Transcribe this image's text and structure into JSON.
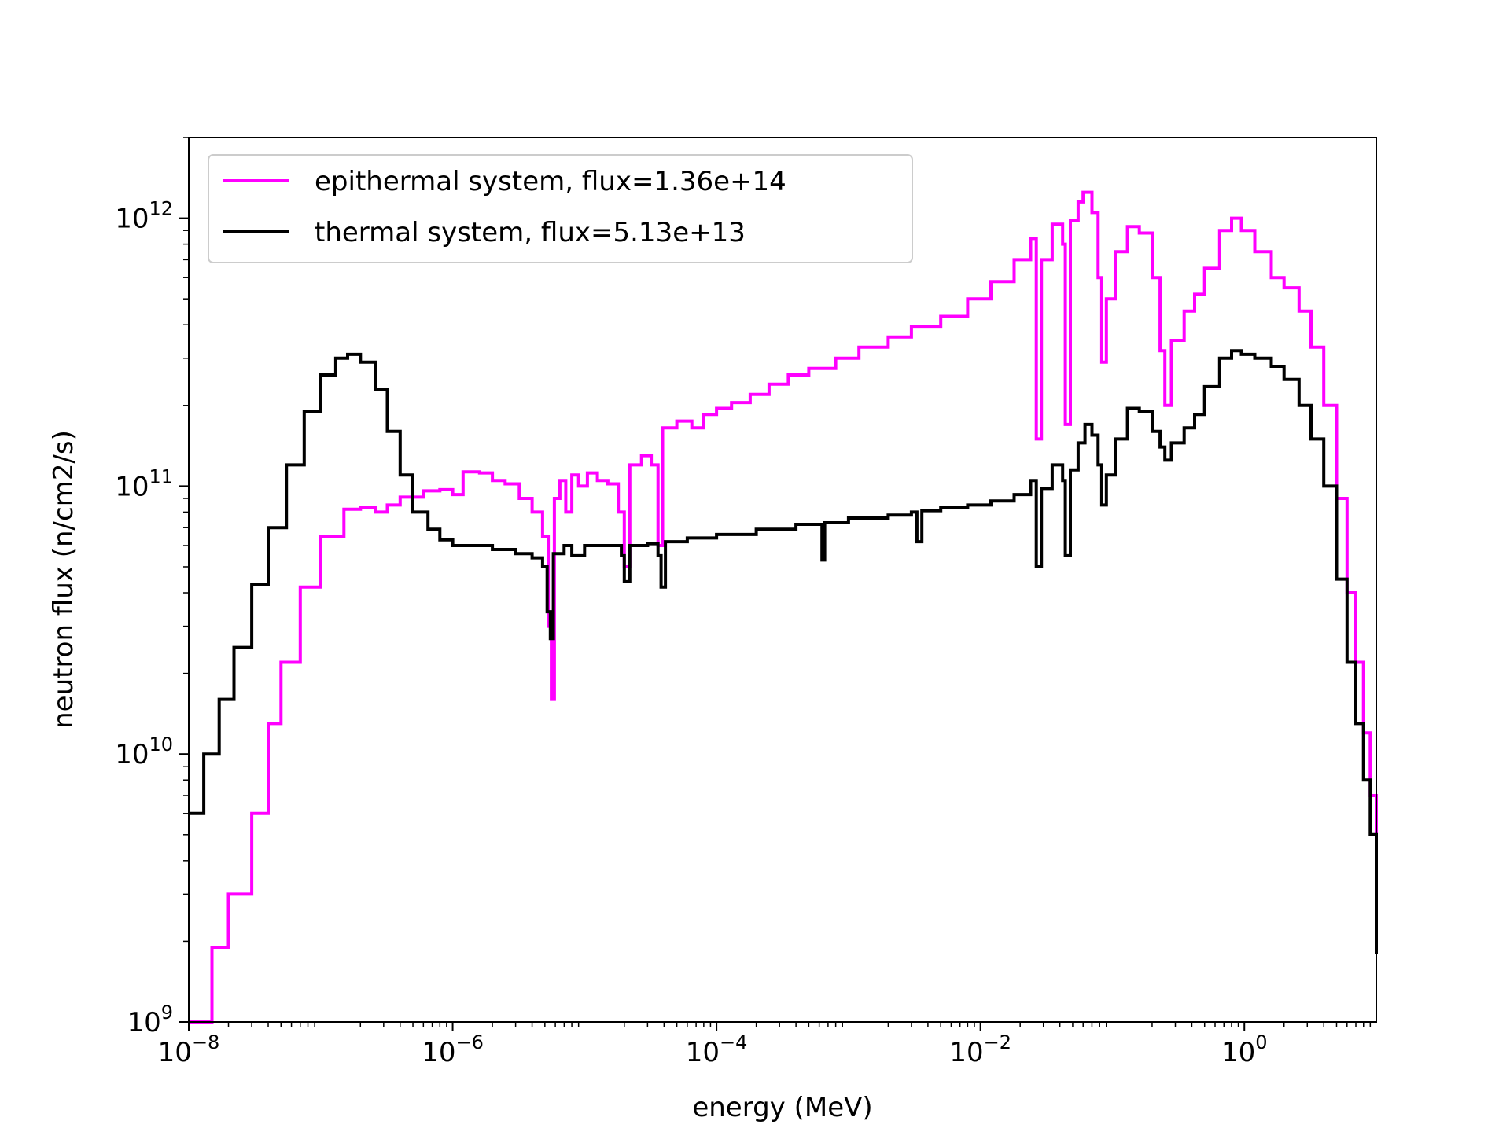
{
  "chart_data": {
    "type": "line",
    "title": "",
    "xlabel": "energy (MeV)",
    "ylabel": "neutron flux (n/cm2/s)",
    "xscale": "log",
    "yscale": "log",
    "xlim": [
      1e-08,
      10
    ],
    "ylim": [
      1000000000.0,
      2000000000000.0
    ],
    "grid": false,
    "legend_position": "upper-left",
    "x_ticks": [
      {
        "base": "10",
        "exp": "−8",
        "value": 1e-08
      },
      {
        "base": "10",
        "exp": "−6",
        "value": 1e-06
      },
      {
        "base": "10",
        "exp": "−4",
        "value": 0.0001
      },
      {
        "base": "10",
        "exp": "−2",
        "value": 0.01
      },
      {
        "base": "10",
        "exp": "0",
        "value": 1
      }
    ],
    "y_ticks": [
      {
        "base": "10",
        "exp": "9",
        "value": 1000000000.0
      },
      {
        "base": "10",
        "exp": "10",
        "value": 10000000000.0
      },
      {
        "base": "10",
        "exp": "11",
        "value": 100000000000.0
      },
      {
        "base": "10",
        "exp": "12",
        "value": 1000000000000.0
      }
    ],
    "series": [
      {
        "name": "epithermal system, flux=1.36e+14",
        "color": "#ff00ff",
        "points": [
          [
            1e-08,
            1000000000.0
          ],
          [
            1.5e-08,
            1900000000.0
          ],
          [
            2e-08,
            3000000000.0
          ],
          [
            3e-08,
            6000000000.0
          ],
          [
            4e-08,
            13000000000.0
          ],
          [
            5e-08,
            22000000000.0
          ],
          [
            7e-08,
            42000000000.0
          ],
          [
            1e-07,
            65000000000.0
          ],
          [
            1.5e-07,
            82000000000.0
          ],
          [
            2e-07,
            83000000000.0
          ],
          [
            2.6e-07,
            80000000000.0
          ],
          [
            3.2e-07,
            85000000000.0
          ],
          [
            4e-07,
            91000000000.0
          ],
          [
            6e-07,
            96000000000.0
          ],
          [
            8e-07,
            97000000000.0
          ],
          [
            1e-06,
            93000000000.0
          ],
          [
            1.2e-06,
            113000000000.0
          ],
          [
            1.6e-06,
            112000000000.0
          ],
          [
            2e-06,
            105000000000.0
          ],
          [
            2.5e-06,
            102000000000.0
          ],
          [
            3.2e-06,
            90000000000.0
          ],
          [
            4e-06,
            80000000000.0
          ],
          [
            4.8e-06,
            65000000000.0
          ],
          [
            5.3e-06,
            30000000000.0
          ],
          [
            5.6e-06,
            16000000000.0
          ],
          [
            5.9e-06,
            90000000000.0
          ],
          [
            6.5e-06,
            105000000000.0
          ],
          [
            7.2e-06,
            80000000000.0
          ],
          [
            8e-06,
            110000000000.0
          ],
          [
            9e-06,
            100000000000.0
          ],
          [
            1.05e-05,
            112000000000.0
          ],
          [
            1.25e-05,
            105000000000.0
          ],
          [
            1.5e-05,
            102000000000.0
          ],
          [
            1.8e-05,
            80000000000.0
          ],
          [
            2e-05,
            50000000000.0
          ],
          [
            2.2e-05,
            120000000000.0
          ],
          [
            2.7e-05,
            130000000000.0
          ],
          [
            3.2e-05,
            120000000000.0
          ],
          [
            3.6e-05,
            60000000000.0
          ],
          [
            3.9e-05,
            165000000000.0
          ],
          [
            5e-05,
            175000000000.0
          ],
          [
            6.5e-05,
            165000000000.0
          ],
          [
            8e-05,
            185000000000.0
          ],
          [
            0.0001,
            195000000000.0
          ],
          [
            0.00013,
            205000000000.0
          ],
          [
            0.00018,
            220000000000.0
          ],
          [
            0.00025,
            240000000000.0
          ],
          [
            0.00035,
            260000000000.0
          ],
          [
            0.0005,
            275000000000.0
          ],
          [
            0.0008,
            300000000000.0
          ],
          [
            0.0012,
            330000000000.0
          ],
          [
            0.002,
            360000000000.0
          ],
          [
            0.003,
            395000000000.0
          ],
          [
            0.005,
            430000000000.0
          ],
          [
            0.008,
            500000000000.0
          ],
          [
            0.012,
            580000000000.0
          ],
          [
            0.018,
            700000000000.0
          ],
          [
            0.024,
            840000000000.0
          ],
          [
            0.0265,
            150000000000.0
          ],
          [
            0.029,
            700000000000.0
          ],
          [
            0.035,
            950000000000.0
          ],
          [
            0.042,
            800000000000.0
          ],
          [
            0.044,
            170000000000.0
          ],
          [
            0.048,
            980000000000.0
          ],
          [
            0.055,
            1150000000000.0
          ],
          [
            0.06,
            1250000000000.0
          ],
          [
            0.07,
            1050000000000.0
          ],
          [
            0.078,
            600000000000.0
          ],
          [
            0.083,
            290000000000.0
          ],
          [
            0.09,
            500000000000.0
          ],
          [
            0.105,
            750000000000.0
          ],
          [
            0.13,
            930000000000.0
          ],
          [
            0.16,
            880000000000.0
          ],
          [
            0.2,
            600000000000.0
          ],
          [
            0.23,
            320000000000.0
          ],
          [
            0.25,
            200000000000.0
          ],
          [
            0.28,
            350000000000.0
          ],
          [
            0.35,
            450000000000.0
          ],
          [
            0.42,
            520000000000.0
          ],
          [
            0.5,
            650000000000.0
          ],
          [
            0.65,
            900000000000.0
          ],
          [
            0.8,
            1000000000000.0
          ],
          [
            0.95,
            900000000000.0
          ],
          [
            1.2,
            750000000000.0
          ],
          [
            1.6,
            600000000000.0
          ],
          [
            2.0,
            550000000000.0
          ],
          [
            2.6,
            450000000000.0
          ],
          [
            3.2,
            330000000000.0
          ],
          [
            4.0,
            200000000000.0
          ],
          [
            5.0,
            90000000000.0
          ],
          [
            6.0,
            40000000000.0
          ],
          [
            7.0,
            22000000000.0
          ],
          [
            8.0,
            12000000000.0
          ],
          [
            9.0,
            7000000000.0
          ],
          [
            10.0,
            5000000000.0
          ]
        ]
      },
      {
        "name": "thermal system, flux=5.13e+13",
        "color": "#000000",
        "points": [
          [
            1e-08,
            6000000000.0
          ],
          [
            1.3e-08,
            10000000000.0
          ],
          [
            1.7e-08,
            16000000000.0
          ],
          [
            2.2e-08,
            25000000000.0
          ],
          [
            3e-08,
            43000000000.0
          ],
          [
            4e-08,
            70000000000.0
          ],
          [
            5.5e-08,
            120000000000.0
          ],
          [
            7.5e-08,
            190000000000.0
          ],
          [
            1e-07,
            260000000000.0
          ],
          [
            1.3e-07,
            300000000000.0
          ],
          [
            1.6e-07,
            310000000000.0
          ],
          [
            2e-07,
            290000000000.0
          ],
          [
            2.6e-07,
            230000000000.0
          ],
          [
            3.2e-07,
            160000000000.0
          ],
          [
            4e-07,
            110000000000.0
          ],
          [
            5e-07,
            80000000000.0
          ],
          [
            6.5e-07,
            69000000000.0
          ],
          [
            8e-07,
            63000000000.0
          ],
          [
            1e-06,
            60000000000.0
          ],
          [
            1.5e-06,
            60000000000.0
          ],
          [
            2e-06,
            58000000000.0
          ],
          [
            3e-06,
            56000000000.0
          ],
          [
            4e-06,
            54000000000.0
          ],
          [
            4.8e-06,
            50000000000.0
          ],
          [
            5.2e-06,
            34000000000.0
          ],
          [
            5.5e-06,
            27000000000.0
          ],
          [
            5.8e-06,
            56000000000.0
          ],
          [
            7e-06,
            60000000000.0
          ],
          [
            8e-06,
            55000000000.0
          ],
          [
            1e-05,
            60000000000.0
          ],
          [
            1.4e-05,
            60000000000.0
          ],
          [
            1.9e-05,
            55000000000.0
          ],
          [
            2e-05,
            44000000000.0
          ],
          [
            2.2e-05,
            60000000000.0
          ],
          [
            3e-05,
            61000000000.0
          ],
          [
            3.6e-05,
            55000000000.0
          ],
          [
            3.8e-05,
            42000000000.0
          ],
          [
            4.1e-05,
            62000000000.0
          ],
          [
            6e-05,
            64000000000.0
          ],
          [
            0.0001,
            66000000000.0
          ],
          [
            0.0002,
            69000000000.0
          ],
          [
            0.0004,
            72000000000.0
          ],
          [
            0.0006,
            72000000000.0
          ],
          [
            0.00063,
            53000000000.0
          ],
          [
            0.00066,
            73000000000.0
          ],
          [
            0.001,
            76000000000.0
          ],
          [
            0.002,
            78000000000.0
          ],
          [
            0.003,
            80000000000.0
          ],
          [
            0.0033,
            62000000000.0
          ],
          [
            0.0036,
            81000000000.0
          ],
          [
            0.005,
            83000000000.0
          ],
          [
            0.008,
            85000000000.0
          ],
          [
            0.012,
            88000000000.0
          ],
          [
            0.018,
            93000000000.0
          ],
          [
            0.024,
            105000000000.0
          ],
          [
            0.0265,
            50000000000.0
          ],
          [
            0.029,
            98000000000.0
          ],
          [
            0.035,
            120000000000.0
          ],
          [
            0.042,
            105000000000.0
          ],
          [
            0.044,
            55000000000.0
          ],
          [
            0.048,
            115000000000.0
          ],
          [
            0.055,
            145000000000.0
          ],
          [
            0.062,
            170000000000.0
          ],
          [
            0.07,
            155000000000.0
          ],
          [
            0.078,
            120000000000.0
          ],
          [
            0.083,
            85000000000.0
          ],
          [
            0.09,
            110000000000.0
          ],
          [
            0.105,
            150000000000.0
          ],
          [
            0.13,
            195000000000.0
          ],
          [
            0.16,
            190000000000.0
          ],
          [
            0.2,
            160000000000.0
          ],
          [
            0.23,
            140000000000.0
          ],
          [
            0.25,
            125000000000.0
          ],
          [
            0.28,
            145000000000.0
          ],
          [
            0.35,
            165000000000.0
          ],
          [
            0.42,
            185000000000.0
          ],
          [
            0.5,
            235000000000.0
          ],
          [
            0.65,
            300000000000.0
          ],
          [
            0.8,
            320000000000.0
          ],
          [
            0.95,
            310000000000.0
          ],
          [
            1.2,
            300000000000.0
          ],
          [
            1.6,
            280000000000.0
          ],
          [
            2.0,
            250000000000.0
          ],
          [
            2.6,
            200000000000.0
          ],
          [
            3.2,
            150000000000.0
          ],
          [
            4.0,
            100000000000.0
          ],
          [
            5.0,
            45000000000.0
          ],
          [
            6.0,
            22000000000.0
          ],
          [
            7.0,
            13000000000.0
          ],
          [
            8.0,
            8000000000.0
          ],
          [
            9.0,
            5000000000.0
          ],
          [
            10.0,
            1800000000.0
          ]
        ]
      }
    ]
  }
}
